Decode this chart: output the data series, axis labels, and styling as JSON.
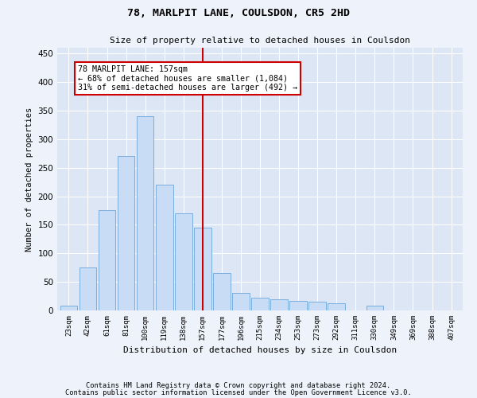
{
  "title": "78, MARLPIT LANE, COULSDON, CR5 2HD",
  "subtitle": "Size of property relative to detached houses in Coulsdon",
  "xlabel": "Distribution of detached houses by size in Coulsdon",
  "ylabel": "Number of detached properties",
  "categories": [
    "23sqm",
    "42sqm",
    "61sqm",
    "81sqm",
    "100sqm",
    "119sqm",
    "138sqm",
    "157sqm",
    "177sqm",
    "196sqm",
    "215sqm",
    "234sqm",
    "253sqm",
    "273sqm",
    "292sqm",
    "311sqm",
    "330sqm",
    "349sqm",
    "369sqm",
    "388sqm",
    "407sqm"
  ],
  "values": [
    8,
    75,
    175,
    270,
    340,
    220,
    170,
    145,
    65,
    30,
    22,
    20,
    17,
    15,
    13,
    0,
    8,
    0,
    0,
    0,
    0
  ],
  "bar_color": "#c9dcf5",
  "bar_edge_color": "#7aaede",
  "highlight_index": 7,
  "annotation_text": "78 MARLPIT LANE: 157sqm\n← 68% of detached houses are smaller (1,084)\n31% of semi-detached houses are larger (492) →",
  "annotation_box_color": "#ffffff",
  "annotation_box_edge_color": "#cc0000",
  "vline_color": "#cc0000",
  "footer_line1": "Contains HM Land Registry data © Crown copyright and database right 2024.",
  "footer_line2": "Contains public sector information licensed under the Open Government Licence v3.0.",
  "ylim": [
    0,
    460
  ],
  "background_color": "#eef2fa",
  "plot_bg_color": "#dce6f5"
}
